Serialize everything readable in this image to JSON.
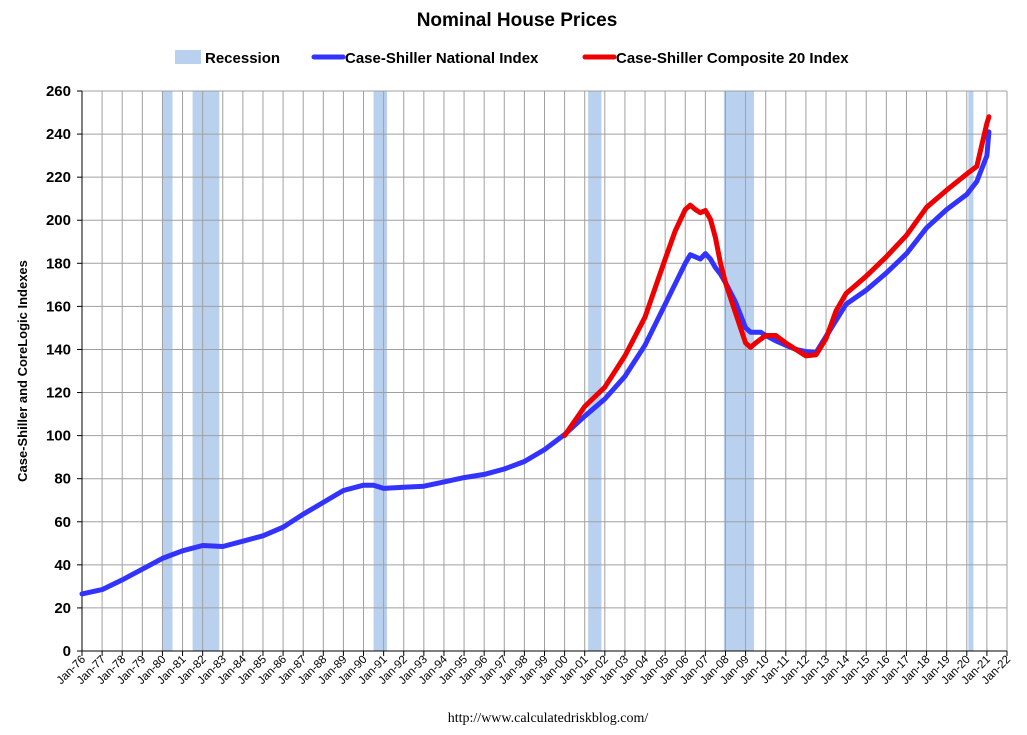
{
  "chart_data": {
    "type": "line",
    "title": "Nominal House Prices",
    "ylabel": "Case-Shiller and CoreLogic Indexes",
    "xlabel": "",
    "source": "http://www.calculatedriskblog.com/",
    "ylim": [
      0,
      260
    ],
    "yticks": [
      0,
      20,
      40,
      60,
      80,
      100,
      120,
      140,
      160,
      180,
      200,
      220,
      240,
      260
    ],
    "xlim": [
      1976,
      2022
    ],
    "xticks": [
      "Jan-76",
      "Jan-77",
      "Jan-78",
      "Jan-79",
      "Jan-80",
      "Jan-81",
      "Jan-82",
      "Jan-83",
      "Jan-84",
      "Jan-85",
      "Jan-86",
      "Jan-87",
      "Jan-88",
      "Jan-89",
      "Jan-90",
      "Jan-91",
      "Jan-92",
      "Jan-93",
      "Jan-94",
      "Jan-95",
      "Jan-96",
      "Jan-97",
      "Jan-98",
      "Jan-99",
      "Jan-00",
      "Jan-01",
      "Jan-02",
      "Jan-03",
      "Jan-04",
      "Jan-05",
      "Jan-06",
      "Jan-07",
      "Jan-08",
      "Jan-09",
      "Jan-10",
      "Jan-11",
      "Jan-12",
      "Jan-13",
      "Jan-14",
      "Jan-15",
      "Jan-16",
      "Jan-17",
      "Jan-18",
      "Jan-19",
      "Jan-20",
      "Jan-21",
      "Jan-22"
    ],
    "grid": true,
    "legend_position": "top-center",
    "legend": [
      "Recession",
      "Case-Shiller National Index",
      "Case-Shiller Composite 20 Index"
    ],
    "colors": {
      "recession": "#b9d1ee",
      "national": "#3333ff",
      "composite": "#ee0000",
      "grid": "#a0a0a0"
    },
    "recessions": [
      {
        "start": 1980.0,
        "end": 1980.5
      },
      {
        "start": 1981.5,
        "end": 1982.83
      },
      {
        "start": 1990.5,
        "end": 1991.17
      },
      {
        "start": 2001.17,
        "end": 2001.83
      },
      {
        "start": 2007.92,
        "end": 2009.42
      },
      {
        "start": 2020.08,
        "end": 2020.33
      }
    ],
    "series": [
      {
        "name": "Case-Shiller National Index",
        "x": [
          1976.0,
          1977.0,
          1978.0,
          1979.0,
          1980.0,
          1981.0,
          1982.0,
          1983.0,
          1984.0,
          1985.0,
          1986.0,
          1987.0,
          1988.0,
          1989.0,
          1990.0,
          1990.5,
          1991.0,
          1992.0,
          1993.0,
          1994.0,
          1995.0,
          1996.0,
          1997.0,
          1998.0,
          1999.0,
          2000.0,
          2001.0,
          2002.0,
          2003.0,
          2004.0,
          2005.0,
          2006.0,
          2006.25,
          2006.5,
          2006.75,
          2007.0,
          2007.25,
          2007.5,
          2007.75,
          2008.0,
          2008.5,
          2009.0,
          2009.25,
          2009.5,
          2009.75,
          2010.0,
          2010.5,
          2011.0,
          2011.5,
          2012.0,
          2012.5,
          2013.0,
          2014.0,
          2015.0,
          2016.0,
          2017.0,
          2018.0,
          2019.0,
          2020.0,
          2020.5,
          2021.0,
          2021.1
        ],
        "values": [
          26.5,
          28.5,
          33,
          38,
          43,
          46.5,
          49,
          48.5,
          51,
          53.5,
          57.5,
          63.5,
          69,
          74.5,
          77,
          77,
          75.5,
          76,
          76.5,
          78.5,
          80.5,
          82,
          84.5,
          88,
          93.5,
          100.5,
          109,
          117,
          127.5,
          142,
          161,
          180,
          184,
          183,
          182,
          184.5,
          182,
          178,
          175,
          171,
          162,
          150,
          148,
          148,
          148,
          146.5,
          144,
          142,
          140,
          139,
          138.5,
          146,
          161,
          167.5,
          175.5,
          184.5,
          196.5,
          205,
          212,
          218,
          230,
          241
        ]
      },
      {
        "name": "Case-Shiller Composite 20 Index",
        "x": [
          2000.0,
          2001.0,
          2002.0,
          2003.0,
          2004.0,
          2005.0,
          2005.5,
          2006.0,
          2006.25,
          2006.5,
          2006.75,
          2007.0,
          2007.25,
          2007.5,
          2007.75,
          2008.0,
          2008.5,
          2009.0,
          2009.25,
          2009.5,
          2010.0,
          2010.5,
          2011.0,
          2011.5,
          2012.0,
          2012.5,
          2013.0,
          2013.5,
          2014.0,
          2015.0,
          2016.0,
          2017.0,
          2018.0,
          2019.0,
          2020.0,
          2020.5,
          2021.0,
          2021.1
        ],
        "values": [
          100,
          113.5,
          122.5,
          137,
          155,
          182,
          195,
          205,
          207,
          205,
          203.5,
          204.5,
          200.5,
          192,
          180,
          171,
          157,
          143,
          141,
          143,
          146.5,
          146.5,
          143,
          140,
          137,
          137.5,
          145,
          158,
          166,
          174,
          183,
          193,
          206,
          214,
          221.5,
          225,
          245,
          248
        ]
      }
    ]
  }
}
